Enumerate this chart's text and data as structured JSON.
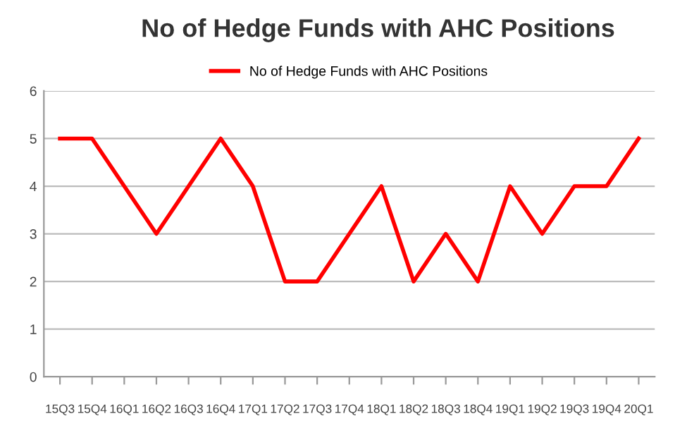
{
  "chart_data": {
    "type": "line",
    "title": "No of Hedge Funds with AHC Positions",
    "categories": [
      "15Q3",
      "15Q4",
      "16Q1",
      "16Q2",
      "16Q3",
      "16Q4",
      "17Q1",
      "17Q2",
      "17Q3",
      "17Q4",
      "18Q1",
      "18Q2",
      "18Q3",
      "18Q4",
      "19Q1",
      "19Q2",
      "19Q3",
      "19Q4",
      "20Q1"
    ],
    "series": [
      {
        "name": "No of Hedge Funds with AHC Positions",
        "color": "#ff0000",
        "values": [
          5,
          5,
          4,
          3,
          4,
          5,
          4,
          2,
          2,
          3,
          4,
          2,
          3,
          2,
          4,
          3,
          4,
          4,
          5
        ]
      }
    ],
    "ylim": [
      0,
      6
    ],
    "yticks": [
      0,
      1,
      2,
      3,
      4,
      5,
      6
    ],
    "grid": "y",
    "legend": "top",
    "marker": "none",
    "line_style": "solid"
  }
}
